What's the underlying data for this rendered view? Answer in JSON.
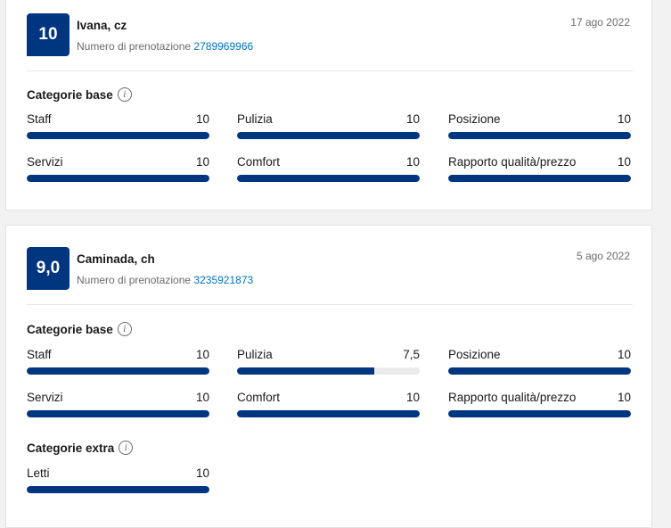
{
  "reviews": [
    {
      "score": "10",
      "name": "Ivana, cz",
      "booking_label": "Numero di prenotazione",
      "booking_number": "2789969966",
      "date": "17 ago 2022",
      "sections": [
        {
          "title": "Categorie base",
          "categories": [
            {
              "label": "Staff",
              "value": "10",
              "fraction": 1.0
            },
            {
              "label": "Pulizia",
              "value": "10",
              "fraction": 1.0
            },
            {
              "label": "Posizione",
              "value": "10",
              "fraction": 1.0
            },
            {
              "label": "Servizi",
              "value": "10",
              "fraction": 1.0
            },
            {
              "label": "Comfort",
              "value": "10",
              "fraction": 1.0
            },
            {
              "label": "Rapporto qualità/prezzo",
              "value": "10",
              "fraction": 1.0
            }
          ]
        }
      ]
    },
    {
      "score": "9,0",
      "name": "Caminada, ch",
      "booking_label": "Numero di prenotazione",
      "booking_number": "3235921873",
      "date": "5 ago 2022",
      "sections": [
        {
          "title": "Categorie base",
          "categories": [
            {
              "label": "Staff",
              "value": "10",
              "fraction": 1.0
            },
            {
              "label": "Pulizia",
              "value": "7,5",
              "fraction": 0.75
            },
            {
              "label": "Posizione",
              "value": "10",
              "fraction": 1.0
            },
            {
              "label": "Servizi",
              "value": "10",
              "fraction": 1.0
            },
            {
              "label": "Comfort",
              "value": "10",
              "fraction": 1.0
            },
            {
              "label": "Rapporto qualità/prezzo",
              "value": "10",
              "fraction": 1.0
            }
          ]
        },
        {
          "title": "Categorie extra",
          "categories": [
            {
              "label": "Letti",
              "value": "10",
              "fraction": 1.0
            }
          ]
        }
      ]
    }
  ],
  "colors": {
    "brand": "#003580",
    "link": "#0071c2",
    "track": "#ebebeb"
  },
  "icons": {
    "info": "info-icon"
  }
}
